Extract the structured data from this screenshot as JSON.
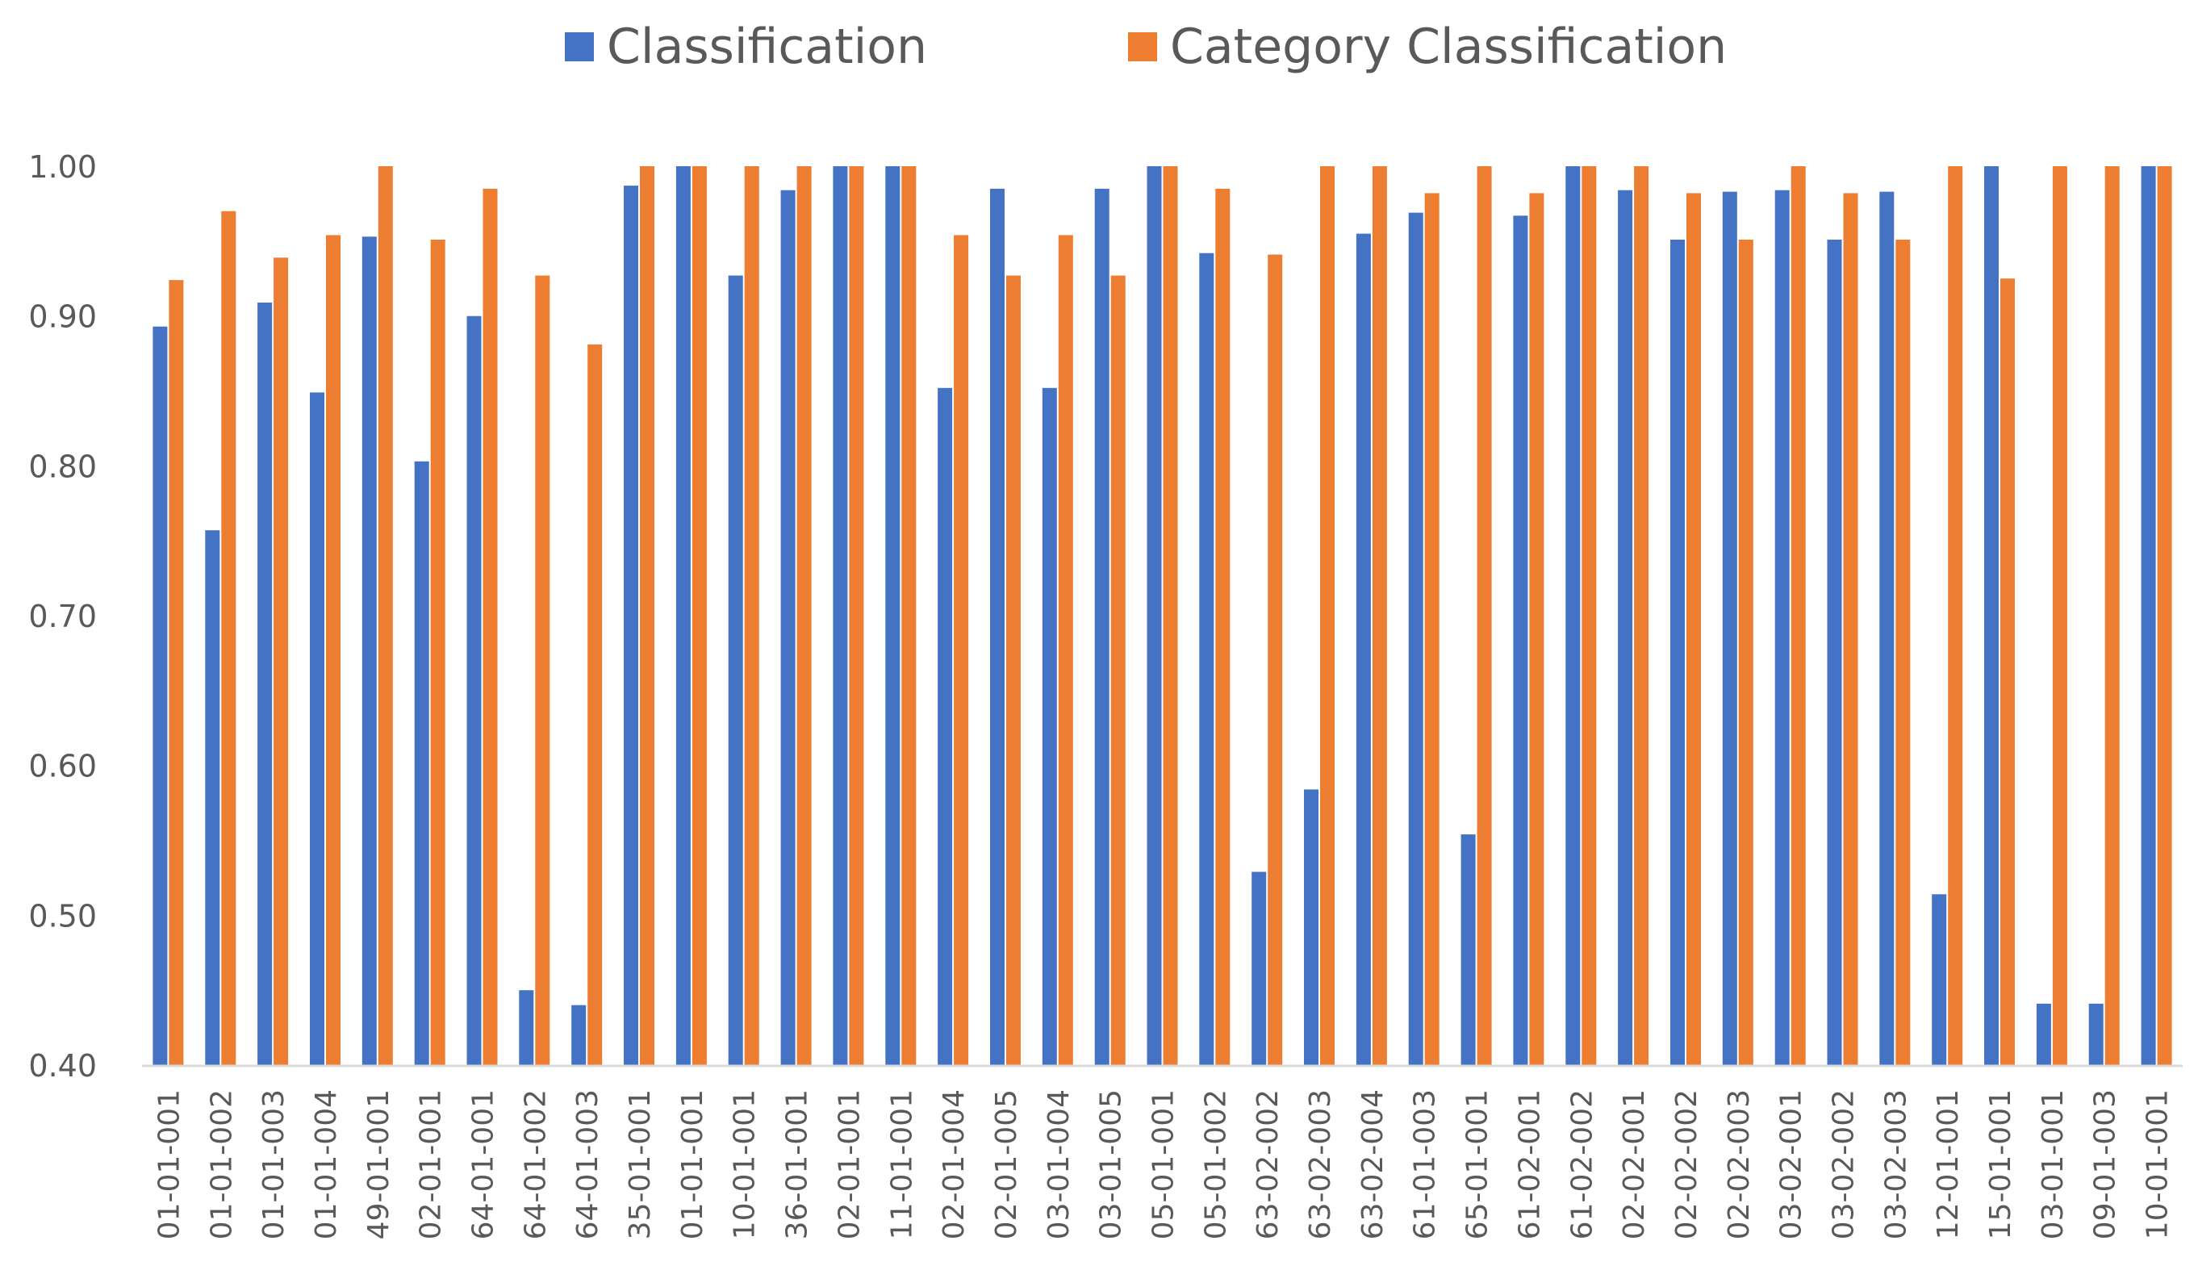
{
  "colors": {
    "classification": "#4472C4",
    "category": "#ED7D31",
    "axis": "#D9D9D9",
    "text": "#595959"
  },
  "chart_data": {
    "type": "bar",
    "legend_position": "top",
    "grid": false,
    "ylim": [
      0.4,
      1.0
    ],
    "yticks": [
      "0.40",
      "0.50",
      "0.60",
      "0.70",
      "0.80",
      "0.90",
      "1.00"
    ],
    "categories": [
      "01-01-001",
      "01-01-002",
      "01-01-003",
      "01-01-004",
      "49-01-001",
      "02-01-001",
      "64-01-001",
      "64-01-002",
      "64-01-003",
      "35-01-001",
      "01-01-001",
      "10-01-001",
      "36-01-001",
      "02-01-001",
      "11-01-001",
      "02-01-004",
      "02-01-005",
      "03-01-004",
      "03-01-005",
      "05-01-001",
      "05-01-002",
      "63-02-002",
      "63-02-003",
      "63-02-004",
      "61-01-003",
      "65-01-001",
      "61-02-001",
      "61-02-002",
      "02-02-001",
      "02-02-002",
      "02-02-003",
      "03-02-001",
      "03-02-002",
      "03-02-003",
      "12-01-001",
      "15-01-001",
      "03-01-001",
      "09-01-003",
      "10-01-001"
    ],
    "series": [
      {
        "name": "Classification",
        "values": [
          0.893,
          0.757,
          0.909,
          0.849,
          0.953,
          0.803,
          0.9,
          0.45,
          0.44,
          0.987,
          1.0,
          0.927,
          0.984,
          1.0,
          1.0,
          0.852,
          0.985,
          0.852,
          0.985,
          1.0,
          0.942,
          0.529,
          0.584,
          0.955,
          0.969,
          0.554,
          0.967,
          1.0,
          0.984,
          0.951,
          0.983,
          0.984,
          0.951,
          0.983,
          0.514,
          1.0,
          0.441,
          0.441,
          1.0
        ]
      },
      {
        "name": "Category Classification",
        "values": [
          0.924,
          0.97,
          0.939,
          0.954,
          1.0,
          0.951,
          0.985,
          0.927,
          0.881,
          1.0,
          1.0,
          1.0,
          1.0,
          1.0,
          1.0,
          0.954,
          0.927,
          0.954,
          0.927,
          1.0,
          0.985,
          0.941,
          1.0,
          1.0,
          0.982,
          1.0,
          0.982,
          1.0,
          1.0,
          0.982,
          0.951,
          1.0,
          0.982,
          0.951,
          1.0,
          0.925,
          1.0,
          1.0,
          1.0
        ]
      }
    ]
  }
}
